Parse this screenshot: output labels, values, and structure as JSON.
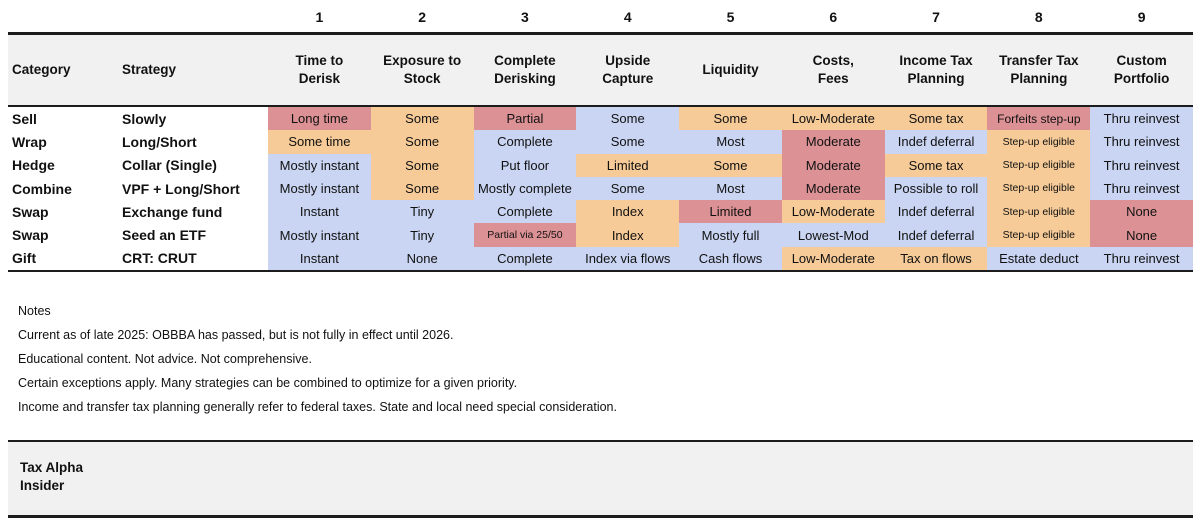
{
  "palette": {
    "red": "#dc9195",
    "orange": "#f6cb98",
    "blue": "#c9d5f2",
    "band_gray": "#f1f1f1",
    "border_dark": "#1c1c1c"
  },
  "table": {
    "column_numbers": [
      "1",
      "2",
      "3",
      "4",
      "5",
      "6",
      "7",
      "8",
      "9"
    ],
    "corner_headers": [
      "Category",
      "Strategy"
    ],
    "columns": [
      "Time to\nDerisk",
      "Exposure to\nStock",
      "Complete\nDerisking",
      "Upside\nCapture",
      "Liquidity",
      "Costs,\nFees",
      "Income Tax\nPlanning",
      "Transfer Tax\nPlanning",
      "Custom\nPortfolio"
    ],
    "rows": [
      {
        "category": "Sell",
        "strategy": "Slowly",
        "cells": [
          {
            "text": "Long time",
            "color": "red"
          },
          {
            "text": "Some",
            "color": "orange"
          },
          {
            "text": "Partial",
            "color": "red"
          },
          {
            "text": "Some",
            "color": "blue"
          },
          {
            "text": "Some",
            "color": "orange"
          },
          {
            "text": "Low-Moderate",
            "color": "orange"
          },
          {
            "text": "Some tax",
            "color": "orange"
          },
          {
            "text": "Forfeits step-up",
            "color": "red",
            "size": "sm"
          },
          {
            "text": "Thru reinvest",
            "color": "blue"
          }
        ]
      },
      {
        "category": "Wrap",
        "strategy": "Long/Short",
        "cells": [
          {
            "text": "Some time",
            "color": "orange"
          },
          {
            "text": "Some",
            "color": "orange"
          },
          {
            "text": "Complete",
            "color": "blue"
          },
          {
            "text": "Some",
            "color": "blue"
          },
          {
            "text": "Most",
            "color": "blue"
          },
          {
            "text": "Moderate",
            "color": "red"
          },
          {
            "text": "Indef deferral",
            "color": "blue"
          },
          {
            "text": "Step-up eligible",
            "color": "orange",
            "size": "xs"
          },
          {
            "text": "Thru reinvest",
            "color": "blue"
          }
        ]
      },
      {
        "category": "Hedge",
        "strategy": "Collar (Single)",
        "cells": [
          {
            "text": "Mostly instant",
            "color": "blue"
          },
          {
            "text": "Some",
            "color": "orange"
          },
          {
            "text": "Put floor",
            "color": "blue"
          },
          {
            "text": "Limited",
            "color": "orange"
          },
          {
            "text": "Some",
            "color": "orange"
          },
          {
            "text": "Moderate",
            "color": "red"
          },
          {
            "text": "Some tax",
            "color": "orange"
          },
          {
            "text": "Step-up eligible",
            "color": "orange",
            "size": "xs"
          },
          {
            "text": "Thru reinvest",
            "color": "blue"
          }
        ]
      },
      {
        "category": "Combine",
        "strategy": "VPF + Long/Short",
        "cells": [
          {
            "text": "Mostly instant",
            "color": "blue"
          },
          {
            "text": "Some",
            "color": "orange"
          },
          {
            "text": "Mostly complete",
            "color": "blue"
          },
          {
            "text": "Some",
            "color": "blue"
          },
          {
            "text": "Most",
            "color": "blue"
          },
          {
            "text": "Moderate",
            "color": "red"
          },
          {
            "text": "Possible to roll",
            "color": "blue"
          },
          {
            "text": "Step-up eligible",
            "color": "orange",
            "size": "xs"
          },
          {
            "text": "Thru reinvest",
            "color": "blue"
          }
        ]
      },
      {
        "category": "Swap",
        "strategy": "Exchange fund",
        "cells": [
          {
            "text": "Instant",
            "color": "blue"
          },
          {
            "text": "Tiny",
            "color": "blue"
          },
          {
            "text": "Complete",
            "color": "blue"
          },
          {
            "text": "Index",
            "color": "orange"
          },
          {
            "text": "Limited",
            "color": "red"
          },
          {
            "text": "Low-Moderate",
            "color": "orange"
          },
          {
            "text": "Indef deferral",
            "color": "blue"
          },
          {
            "text": "Step-up eligible",
            "color": "orange",
            "size": "xs"
          },
          {
            "text": "None",
            "color": "red"
          }
        ]
      },
      {
        "category": "Swap",
        "strategy": "Seed an ETF",
        "cells": [
          {
            "text": "Mostly instant",
            "color": "blue"
          },
          {
            "text": "Tiny",
            "color": "blue"
          },
          {
            "text": "Partial via 25/50",
            "color": "red",
            "size": "xs"
          },
          {
            "text": "Index",
            "color": "orange"
          },
          {
            "text": "Mostly full",
            "color": "blue"
          },
          {
            "text": "Lowest-Mod",
            "color": "blue"
          },
          {
            "text": "Indef deferral",
            "color": "blue"
          },
          {
            "text": "Step-up eligible",
            "color": "orange",
            "size": "xs"
          },
          {
            "text": "None",
            "color": "red"
          }
        ]
      },
      {
        "category": "Gift",
        "strategy": "CRT: CRUT",
        "cells": [
          {
            "text": "Instant",
            "color": "blue"
          },
          {
            "text": "None",
            "color": "blue"
          },
          {
            "text": "Complete",
            "color": "blue"
          },
          {
            "text": "Index via flows",
            "color": "blue"
          },
          {
            "text": "Cash flows",
            "color": "blue"
          },
          {
            "text": "Low-Moderate",
            "color": "orange"
          },
          {
            "text": "Tax on flows",
            "color": "orange"
          },
          {
            "text": "Estate deduct",
            "color": "blue"
          },
          {
            "text": "Thru reinvest",
            "color": "blue"
          }
        ]
      }
    ]
  },
  "notes": {
    "heading": "Notes",
    "lines": [
      "Current as of late 2025: OBBBA has passed, but is not fully in effect until 2026.",
      "Educational content. Not advice. Not comprehensive.",
      "Certain exceptions apply. Many strategies can be combined to optimize for a given priority.",
      "Income and transfer tax planning generally refer to federal taxes. State and local need special consideration."
    ]
  },
  "footer": {
    "title": "Tax Alpha\nInsider"
  }
}
